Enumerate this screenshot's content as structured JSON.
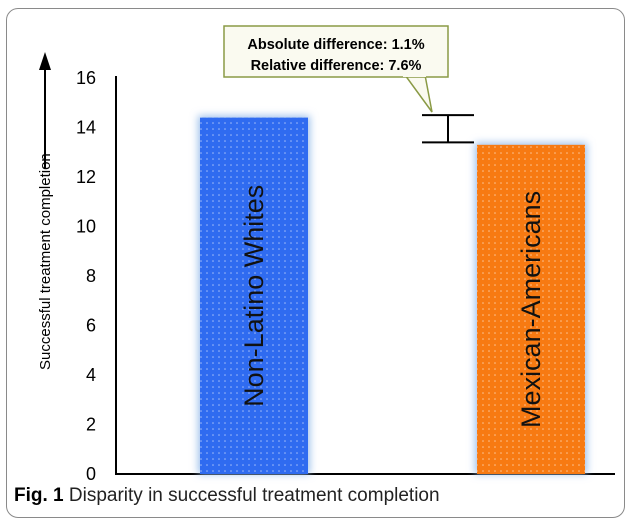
{
  "caption": {
    "label": "Fig. 1",
    "text": "Disparity in successful treatment completion"
  },
  "callout": {
    "line1": "Absolute difference: 1.1%",
    "line2": "Relative difference: 7.6%"
  },
  "chart_data": {
    "type": "bar",
    "categories": [
      "Non-Latino Whites",
      "Mexican-Americans"
    ],
    "values": [
      14.4,
      13.3
    ],
    "title": "",
    "xlabel": "",
    "ylabel": "Successful treatment completion",
    "ylim": [
      0,
      16
    ],
    "yticks": [
      0,
      2,
      4,
      6,
      8,
      10,
      12,
      14,
      16
    ],
    "grid": false,
    "colors": [
      "#2f6bf0",
      "#f77a12"
    ],
    "error_bar": {
      "low": 13.4,
      "high": 14.5
    }
  }
}
